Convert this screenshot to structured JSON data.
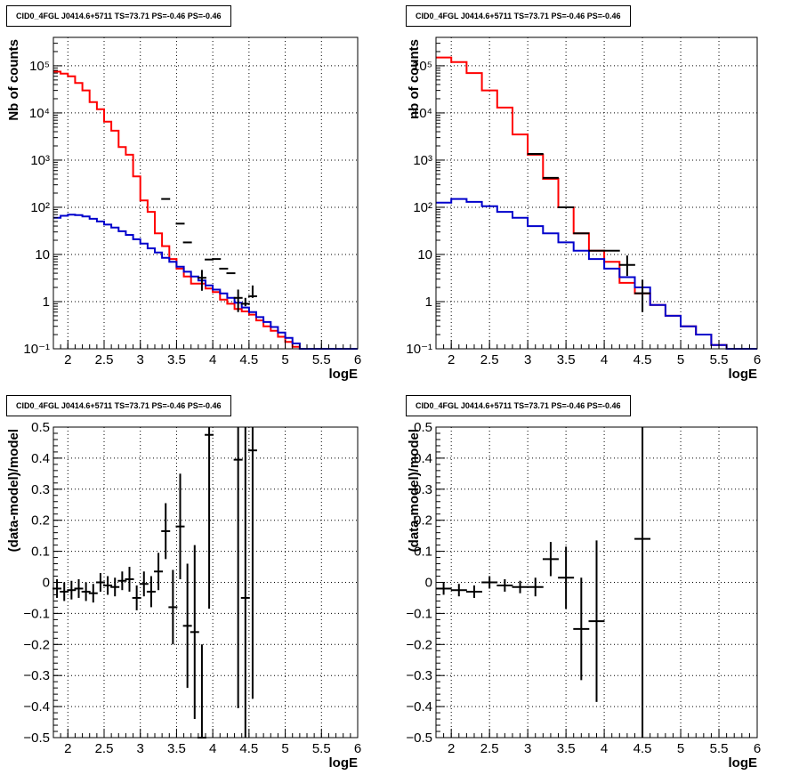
{
  "chart_data": [
    {
      "type": "line",
      "title": "CID0_4FGL J0414.6+5711 TS=73.71 PS=-0.46 PS=-0.46",
      "xlabel": "logE",
      "ylabel": "Nb of counts",
      "xlim": [
        1.8,
        6.0
      ],
      "ylim": [
        0.1,
        400000
      ],
      "yscale": "log",
      "grid": true,
      "xticks": [
        "2",
        "2.5",
        "3",
        "3.5",
        "4",
        "4.5",
        "5",
        "5.5",
        "6"
      ],
      "yticks": [
        "10^-1",
        "1",
        "10",
        "10^2",
        "10^3",
        "10^4",
        "10^5"
      ],
      "series": [
        {
          "color": "#ff0000",
          "style": "step",
          "x": [
            1.8,
            1.9,
            2.0,
            2.1,
            2.2,
            2.3,
            2.4,
            2.5,
            2.6,
            2.7,
            2.8,
            2.9,
            3.0,
            3.1,
            3.2,
            3.3,
            3.4,
            3.5,
            3.6,
            3.7,
            3.8,
            3.9,
            4.0,
            4.1,
            4.2,
            4.3,
            4.4,
            4.5,
            4.6,
            4.7,
            4.8,
            4.9,
            5.0,
            5.1,
            5.2,
            5.3,
            5.4,
            5.5,
            5.6,
            5.7,
            5.8,
            5.9
          ],
          "values": [
            75000,
            68000,
            60000,
            43000,
            30000,
            17000,
            12000,
            6500,
            4200,
            1900,
            1300,
            450,
            140,
            80,
            28,
            15,
            8,
            5,
            3.4,
            2.4,
            2.4,
            1.9,
            1.6,
            1.1,
            0.9,
            0.7,
            0.62,
            0.53,
            0.4,
            0.3,
            0.24,
            0.18,
            0.14,
            0.11,
            0.1,
            0.1,
            0.1,
            0.1,
            0.1,
            0.1,
            0.1,
            0.1
          ]
        },
        {
          "color": "#0000cc",
          "style": "step",
          "x": [
            1.8,
            1.9,
            2.0,
            2.1,
            2.2,
            2.3,
            2.4,
            2.5,
            2.6,
            2.7,
            2.8,
            2.9,
            3.0,
            3.1,
            3.2,
            3.3,
            3.4,
            3.5,
            3.6,
            3.7,
            3.8,
            3.9,
            4.0,
            4.1,
            4.2,
            4.3,
            4.4,
            4.5,
            4.6,
            4.7,
            4.8,
            4.9,
            5.0,
            5.1,
            5.2,
            5.3,
            5.4,
            5.5,
            5.6,
            5.7,
            5.8,
            5.9
          ],
          "values": [
            60,
            66,
            70,
            68,
            64,
            57,
            50,
            43,
            37,
            31,
            26,
            21,
            17,
            13.5,
            11,
            8.5,
            7,
            5.5,
            4.3,
            3.4,
            2.8,
            2.2,
            1.8,
            1.5,
            1.2,
            0.95,
            0.75,
            0.6,
            0.47,
            0.37,
            0.29,
            0.22,
            0.17,
            0.13,
            0.1,
            0.1,
            0.1,
            0.1,
            0.1,
            0.1,
            0.1,
            0.1
          ]
        },
        {
          "color": "#000000",
          "style": "points",
          "x": [
            3.35,
            3.55,
            3.65,
            3.85,
            3.95,
            4.05,
            4.15,
            4.25,
            4.35,
            4.45,
            4.55
          ],
          "values": [
            150,
            45,
            18,
            3.2,
            7.8,
            8,
            5,
            4,
            1.2,
            0.9,
            1.3
          ],
          "err_lo": [
            0,
            0,
            0,
            1.5,
            0,
            0,
            0,
            0,
            0.6,
            0.1,
            0.1
          ],
          "err_hi": [
            0,
            0,
            0,
            1.5,
            0,
            0,
            0,
            0,
            0.6,
            0.3,
            0.9
          ]
        }
      ]
    },
    {
      "type": "line",
      "title": "CID0_4FGL J0414.6+5711 TS=73.71 PS=-0.46 PS=-0.46",
      "xlabel": "logE",
      "ylabel": "nb of counts",
      "xlim": [
        1.8,
        6.0
      ],
      "ylim": [
        0.1,
        400000
      ],
      "yscale": "log",
      "grid": true,
      "xticks": [
        "2",
        "2.5",
        "3",
        "3.5",
        "4",
        "4.5",
        "5",
        "5.5",
        "6"
      ],
      "yticks": [
        "10^-1",
        "1",
        "10",
        "10^2",
        "10^3",
        "10^4",
        "10^5"
      ],
      "series": [
        {
          "color": "#ff0000",
          "style": "step",
          "x": [
            1.8,
            2.0,
            2.2,
            2.4,
            2.6,
            2.8,
            3.0,
            3.2,
            3.4,
            3.6,
            3.8,
            4.0,
            4.2,
            4.4,
            4.6,
            4.8,
            5.0,
            5.2,
            5.4,
            5.6
          ],
          "values": [
            150000,
            120000,
            70000,
            30000,
            13000,
            3500,
            1300,
            400,
            100,
            28,
            12,
            7,
            2.5,
            1.5,
            0.85,
            0.5,
            0.3,
            0.2,
            0.12,
            0.1
          ]
        },
        {
          "color": "#0000cc",
          "style": "step",
          "x": [
            1.8,
            2.0,
            2.2,
            2.4,
            2.6,
            2.8,
            3.0,
            3.2,
            3.4,
            3.6,
            3.8,
            4.0,
            4.2,
            4.4,
            4.6,
            4.8,
            5.0,
            5.2,
            5.4,
            5.6
          ],
          "values": [
            125,
            150,
            130,
            105,
            80,
            60,
            40,
            28,
            18,
            12,
            8,
            5,
            3.3,
            2,
            0.85,
            0.5,
            0.3,
            0.2,
            0.12,
            0.1
          ]
        },
        {
          "color": "#000000",
          "style": "points",
          "x": [
            3.1,
            3.3,
            3.5,
            3.7,
            3.9,
            4.1,
            4.3,
            4.5
          ],
          "values": [
            1350,
            420,
            100,
            28,
            12,
            12,
            6,
            1.5
          ],
          "err_lo": [
            0,
            0,
            0,
            0,
            0,
            0,
            2.5,
            0.9
          ],
          "err_hi": [
            0,
            0,
            0,
            0,
            0,
            0,
            3.5,
            1.4
          ]
        }
      ]
    },
    {
      "type": "scatter",
      "title": "CID0_4FGL J0414.6+5711 TS=73.71 PS=-0.46 PS=-0.46",
      "xlabel": "logE",
      "ylabel": "(data-model)/model",
      "xlim": [
        1.8,
        6.0
      ],
      "ylim": [
        -0.5,
        0.5
      ],
      "grid": true,
      "xticks": [
        "2",
        "2.5",
        "3",
        "3.5",
        "4",
        "4.5",
        "5",
        "5.5",
        "6"
      ],
      "yticks": [
        "-0.5",
        "-0.4",
        "-0.3",
        "-0.2",
        "-0.1",
        "0",
        "0.1",
        "0.2",
        "0.3",
        "0.4",
        "0.5"
      ],
      "series": [
        {
          "color": "#000000",
          "x": [
            1.85,
            1.95,
            2.05,
            2.15,
            2.25,
            2.35,
            2.45,
            2.55,
            2.65,
            2.75,
            2.85,
            2.95,
            3.05,
            3.15,
            3.25,
            3.35,
            3.45,
            3.55,
            3.65,
            3.75,
            3.85,
            3.95,
            4.35,
            4.45,
            4.55
          ],
          "values": [
            -0.02,
            -0.03,
            -0.025,
            -0.02,
            -0.03,
            -0.035,
            0,
            -0.01,
            -0.015,
            0.005,
            0.01,
            -0.05,
            -0.005,
            -0.03,
            0.035,
            0.165,
            -0.08,
            0.18,
            -0.14,
            -0.16,
            -0.5,
            0.475,
            0.395,
            -0.05,
            0.425
          ],
          "err": [
            0.03,
            0.03,
            0.03,
            0.03,
            0.03,
            0.03,
            0.03,
            0.03,
            0.03,
            0.03,
            0.04,
            0.04,
            0.04,
            0.05,
            0.06,
            0.09,
            0.12,
            0.17,
            0.2,
            0.28,
            0.3,
            0.56,
            0.8,
            0.8,
            0.8
          ]
        }
      ]
    },
    {
      "type": "scatter",
      "title": "CID0_4FGL J0414.6+5711 TS=73.71 PS=-0.46 PS=-0.46",
      "xlabel": "logE",
      "ylabel": "(data-model)/model",
      "xlim": [
        1.8,
        6.0
      ],
      "ylim": [
        -0.5,
        0.5
      ],
      "grid": true,
      "xticks": [
        "2",
        "2.5",
        "3",
        "3.5",
        "4",
        "4.5",
        "5",
        "5.5",
        "6"
      ],
      "yticks": [
        "-0.5",
        "-0.4",
        "-0.3",
        "-0.2",
        "-0.1",
        "0",
        "0.1",
        "0.2",
        "0.3",
        "0.4",
        "0.5"
      ],
      "series": [
        {
          "color": "#000000",
          "x": [
            1.9,
            2.1,
            2.3,
            2.5,
            2.7,
            2.9,
            3.1,
            3.3,
            3.5,
            3.7,
            3.9,
            4.5
          ],
          "values": [
            -0.02,
            -0.025,
            -0.03,
            0,
            -0.01,
            -0.015,
            -0.015,
            0.075,
            0.015,
            -0.15,
            -0.125,
            0.14
          ],
          "err": [
            0.02,
            0.02,
            0.02,
            0.02,
            0.02,
            0.02,
            0.03,
            0.055,
            0.1,
            0.165,
            0.26,
            0.8
          ]
        }
      ]
    }
  ]
}
